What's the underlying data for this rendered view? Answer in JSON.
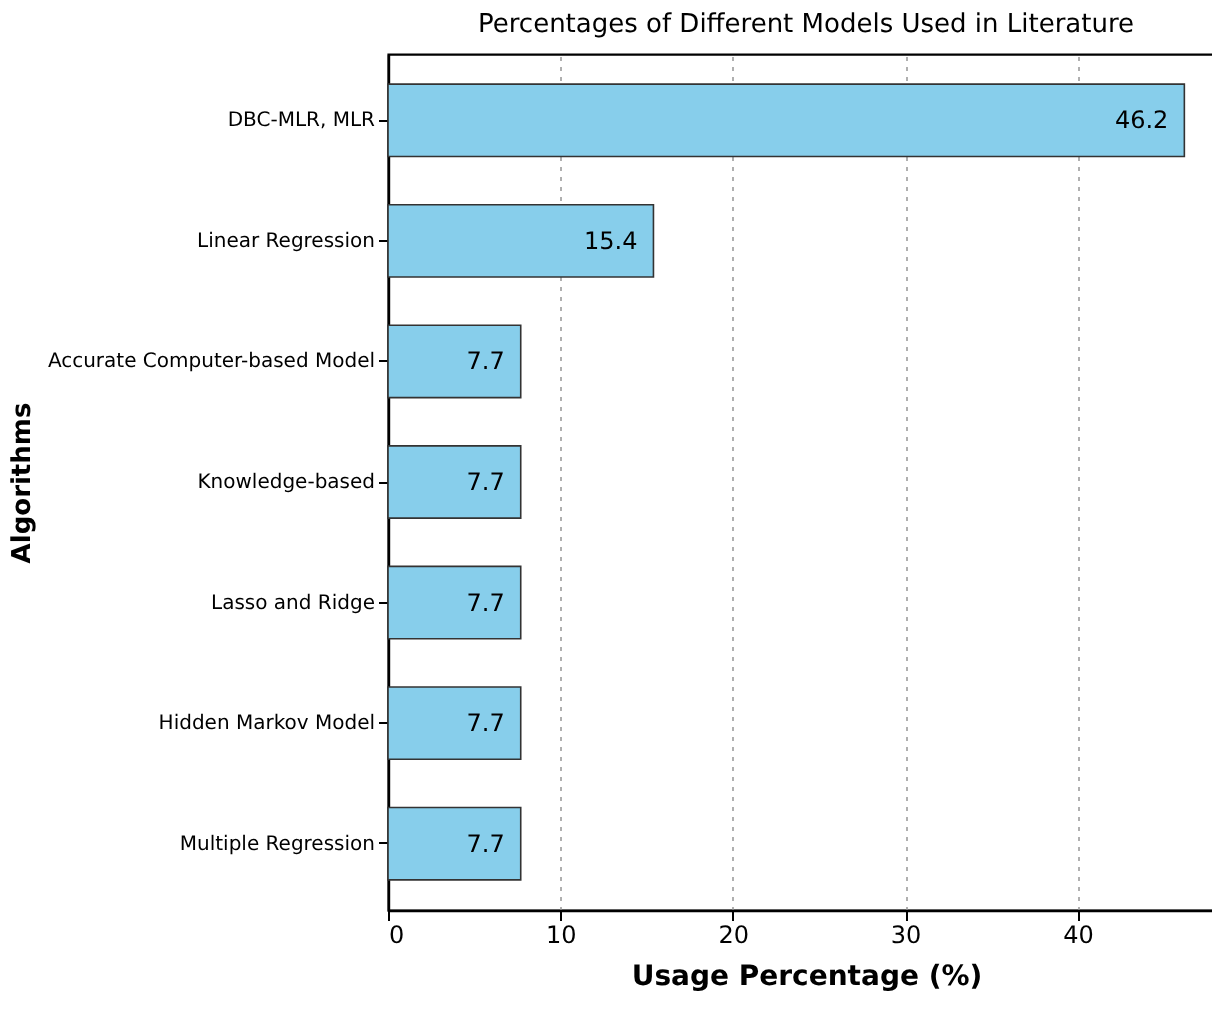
{
  "chart_data": {
    "type": "bar",
    "orientation": "horizontal",
    "title": "Percentages of Different Models Used in Literature",
    "xlabel": "Usage Percentage (%)",
    "ylabel": "Algorithms",
    "categories": [
      "DBC-MLR, MLR",
      "Linear Regression",
      "Accurate Computer-based Model",
      "Knowledge-based",
      "Lasso and Ridge",
      "Hidden Markov Model",
      "Multiple Regression"
    ],
    "values": [
      46.2,
      15.4,
      7.7,
      7.7,
      7.7,
      7.7,
      7.7
    ],
    "color": "#87ceeb",
    "xlim": [
      0,
      48.5
    ],
    "xticks": [
      0,
      10,
      20,
      30,
      40
    ],
    "grid": "x",
    "data_labels": true
  }
}
